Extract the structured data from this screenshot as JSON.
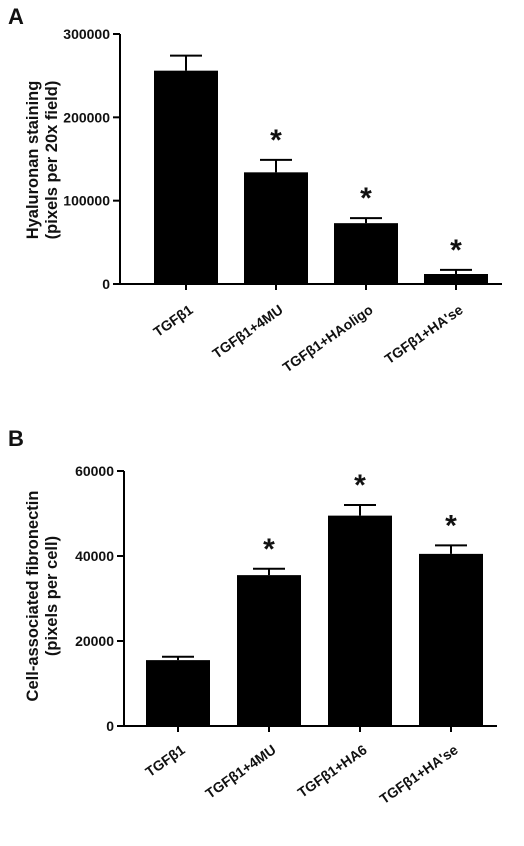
{
  "chart_data": [
    {
      "type": "bar",
      "panel_label": "A",
      "ylabel_line1": "Hyaluronan staining",
      "ylabel_line2": "(pixels per 20x field)",
      "ylim": [
        0,
        300000
      ],
      "yticks": [
        "0",
        "100000",
        "200000",
        "300000"
      ],
      "ytick_values": [
        0,
        100000,
        200000,
        300000
      ],
      "categories": [
        "TGFβ1",
        "TGFβ1+4MU",
        "TGFβ1+HAoligo",
        "TGFβ1+HA'se"
      ],
      "values": [
        256000,
        134000,
        73000,
        12000
      ],
      "errors": [
        18000,
        15000,
        6000,
        5000
      ],
      "significance": [
        "",
        "*",
        "*",
        "*"
      ],
      "bar_color": "#000000"
    },
    {
      "type": "bar",
      "panel_label": "B",
      "ylabel_line1": "Cell-associated fibronectin",
      "ylabel_line2": "(pixels per cell)",
      "ylim": [
        0,
        60000
      ],
      "yticks": [
        "0",
        "20000",
        "40000",
        "60000"
      ],
      "ytick_values": [
        0,
        20000,
        40000,
        60000
      ],
      "categories": [
        "TGFβ1",
        "TGFβ1+4MU",
        "TGFβ1+HA6",
        "TGFβ1+HA'se"
      ],
      "values": [
        15500,
        35500,
        49500,
        40500
      ],
      "errors": [
        800,
        1500,
        2500,
        2000
      ],
      "significance": [
        "",
        "*",
        "*",
        "*"
      ],
      "bar_color": "#000000"
    }
  ]
}
